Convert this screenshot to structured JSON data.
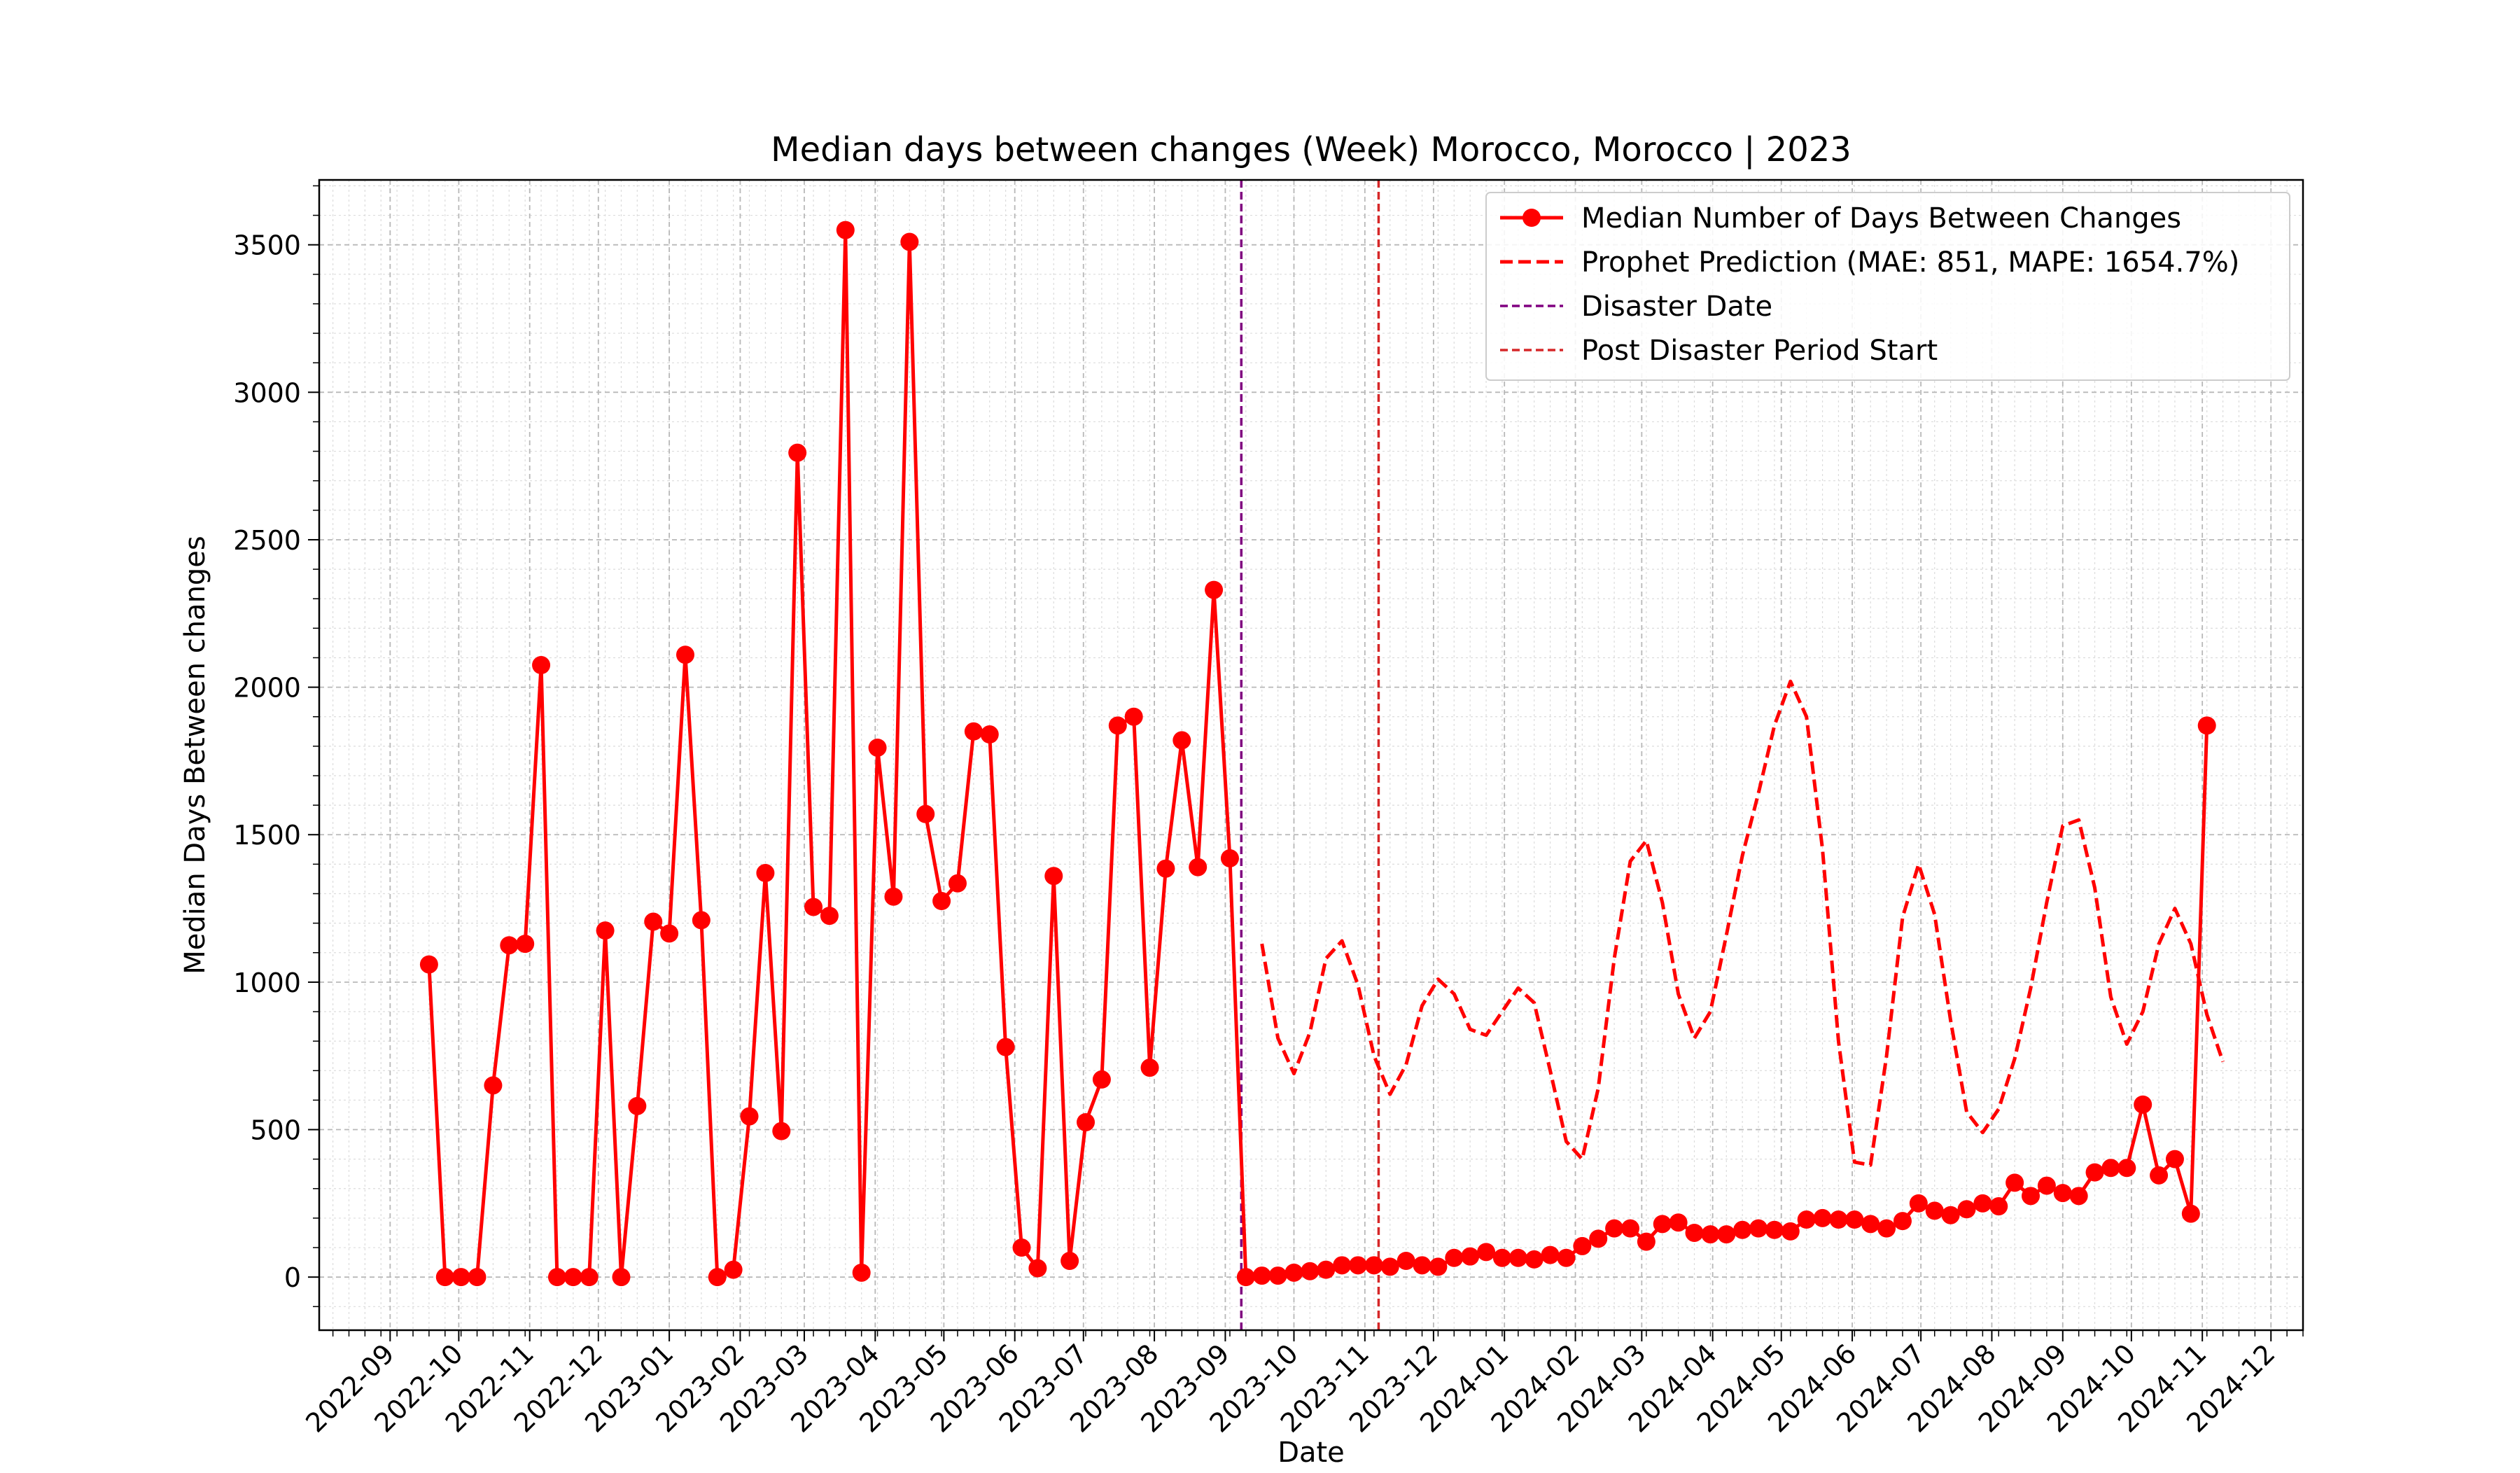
{
  "chart_data": {
    "type": "line",
    "title": "Median days between changes (Week) Morocco, Morocco | 2023",
    "xlabel": "Date",
    "ylabel": "Median Days Between changes",
    "x_axis_type": "date",
    "xlim": [
      "2022-08-01",
      "2024-12-15"
    ],
    "ylim": [
      -180,
      3720
    ],
    "x_ticks": [
      "2022-09",
      "2022-10",
      "2022-11",
      "2022-12",
      "2023-01",
      "2023-02",
      "2023-03",
      "2023-04",
      "2023-05",
      "2023-06",
      "2023-07",
      "2023-08",
      "2023-09",
      "2023-10",
      "2023-11",
      "2023-12",
      "2024-01",
      "2024-02",
      "2024-03",
      "2024-04",
      "2024-05",
      "2024-06",
      "2024-07",
      "2024-08",
      "2024-09",
      "2024-10",
      "2024-11",
      "2024-12"
    ],
    "y_ticks": [
      0,
      500,
      1000,
      1500,
      2000,
      2500,
      3000,
      3500
    ],
    "grid": true,
    "legend_position": "top-right",
    "series": [
      {
        "name": "Median Number of Days Between Changes",
        "color": "#ff0000",
        "style": "solid-with-markers",
        "points": [
          [
            "2022-09-18",
            1060
          ],
          [
            "2022-09-25",
            0
          ],
          [
            "2022-10-02",
            0
          ],
          [
            "2022-10-09",
            0
          ],
          [
            "2022-10-16",
            650
          ],
          [
            "2022-10-23",
            1125
          ],
          [
            "2022-10-30",
            1130
          ],
          [
            "2022-11-06",
            2075
          ],
          [
            "2022-11-13",
            0
          ],
          [
            "2022-11-20",
            0
          ],
          [
            "2022-11-27",
            0
          ],
          [
            "2022-12-04",
            1175
          ],
          [
            "2022-12-11",
            0
          ],
          [
            "2022-12-18",
            580
          ],
          [
            "2022-12-25",
            1205
          ],
          [
            "2023-01-01",
            1165
          ],
          [
            "2023-01-08",
            2110
          ],
          [
            "2023-01-15",
            1210
          ],
          [
            "2023-01-22",
            0
          ],
          [
            "2023-01-29",
            25
          ],
          [
            "2023-02-05",
            545
          ],
          [
            "2023-02-12",
            1370
          ],
          [
            "2023-02-19",
            495
          ],
          [
            "2023-02-26",
            2795
          ],
          [
            "2023-03-05",
            1255
          ],
          [
            "2023-03-12",
            1225
          ],
          [
            "2023-03-19",
            3550
          ],
          [
            "2023-03-26",
            15
          ],
          [
            "2023-04-02",
            1795
          ],
          [
            "2023-04-09",
            1290
          ],
          [
            "2023-04-16",
            3510
          ],
          [
            "2023-04-23",
            1570
          ],
          [
            "2023-04-30",
            1275
          ],
          [
            "2023-05-07",
            1335
          ],
          [
            "2023-05-14",
            1850
          ],
          [
            "2023-05-21",
            1840
          ],
          [
            "2023-05-28",
            780
          ],
          [
            "2023-06-04",
            100
          ],
          [
            "2023-06-11",
            30
          ],
          [
            "2023-06-18",
            1360
          ],
          [
            "2023-06-25",
            55
          ],
          [
            "2023-07-02",
            525
          ],
          [
            "2023-07-09",
            670
          ],
          [
            "2023-07-16",
            1870
          ],
          [
            "2023-07-23",
            1900
          ],
          [
            "2023-07-30",
            710
          ],
          [
            "2023-08-06",
            1385
          ],
          [
            "2023-08-13",
            1820
          ],
          [
            "2023-08-20",
            1390
          ],
          [
            "2023-08-27",
            2330
          ],
          [
            "2023-09-03",
            1420
          ],
          [
            "2023-09-10",
            0
          ],
          [
            "2023-09-17",
            5
          ],
          [
            "2023-09-24",
            5
          ],
          [
            "2023-10-01",
            15
          ],
          [
            "2023-10-08",
            20
          ],
          [
            "2023-10-15",
            25
          ],
          [
            "2023-10-22",
            40
          ],
          [
            "2023-10-29",
            40
          ],
          [
            "2023-11-05",
            40
          ],
          [
            "2023-11-12",
            35
          ],
          [
            "2023-11-19",
            55
          ],
          [
            "2023-11-26",
            40
          ],
          [
            "2023-12-03",
            35
          ],
          [
            "2023-12-10",
            65
          ],
          [
            "2023-12-17",
            70
          ],
          [
            "2023-12-24",
            85
          ],
          [
            "2023-12-31",
            65
          ],
          [
            "2024-01-07",
            65
          ],
          [
            "2024-01-14",
            60
          ],
          [
            "2024-01-21",
            75
          ],
          [
            "2024-01-28",
            65
          ],
          [
            "2024-02-04",
            105
          ],
          [
            "2024-02-11",
            130
          ],
          [
            "2024-02-18",
            165
          ],
          [
            "2024-02-25",
            165
          ],
          [
            "2024-03-03",
            120
          ],
          [
            "2024-03-10",
            180
          ],
          [
            "2024-03-17",
            185
          ],
          [
            "2024-03-24",
            150
          ],
          [
            "2024-03-31",
            145
          ],
          [
            "2024-04-07",
            145
          ],
          [
            "2024-04-14",
            160
          ],
          [
            "2024-04-21",
            165
          ],
          [
            "2024-04-28",
            160
          ],
          [
            "2024-05-05",
            155
          ],
          [
            "2024-05-12",
            195
          ],
          [
            "2024-05-19",
            200
          ],
          [
            "2024-05-26",
            195
          ],
          [
            "2024-06-02",
            195
          ],
          [
            "2024-06-09",
            180
          ],
          [
            "2024-06-16",
            165
          ],
          [
            "2024-06-23",
            190
          ],
          [
            "2024-06-30",
            250
          ],
          [
            "2024-07-07",
            225
          ],
          [
            "2024-07-14",
            210
          ],
          [
            "2024-07-21",
            230
          ],
          [
            "2024-07-28",
            250
          ],
          [
            "2024-08-04",
            240
          ],
          [
            "2024-08-11",
            320
          ],
          [
            "2024-08-18",
            275
          ],
          [
            "2024-08-25",
            310
          ],
          [
            "2024-09-01",
            285
          ],
          [
            "2024-09-08",
            275
          ],
          [
            "2024-09-15",
            355
          ],
          [
            "2024-09-22",
            370
          ],
          [
            "2024-09-29",
            370
          ],
          [
            "2024-10-06",
            585
          ],
          [
            "2024-10-13",
            345
          ],
          [
            "2024-10-20",
            400
          ],
          [
            "2024-10-27",
            215
          ],
          [
            "2024-11-03",
            1870
          ]
        ]
      },
      {
        "name": "Prophet Prediction (MAE: 851, MAPE: 1654.7%)",
        "color": "#ff0000",
        "style": "dashed",
        "points": [
          [
            "2023-09-17",
            1130
          ],
          [
            "2023-09-24",
            810
          ],
          [
            "2023-10-01",
            690
          ],
          [
            "2023-10-08",
            830
          ],
          [
            "2023-10-15",
            1080
          ],
          [
            "2023-10-22",
            1140
          ],
          [
            "2023-10-29",
            990
          ],
          [
            "2023-11-05",
            750
          ],
          [
            "2023-11-12",
            620
          ],
          [
            "2023-11-19",
            720
          ],
          [
            "2023-11-26",
            920
          ],
          [
            "2023-12-03",
            1010
          ],
          [
            "2023-12-10",
            960
          ],
          [
            "2023-12-17",
            840
          ],
          [
            "2023-12-24",
            820
          ],
          [
            "2023-12-31",
            900
          ],
          [
            "2024-01-07",
            980
          ],
          [
            "2024-01-14",
            930
          ],
          [
            "2024-01-21",
            700
          ],
          [
            "2024-01-28",
            460
          ],
          [
            "2024-02-04",
            400
          ],
          [
            "2024-02-11",
            640
          ],
          [
            "2024-02-18",
            1080
          ],
          [
            "2024-02-25",
            1410
          ],
          [
            "2024-03-03",
            1480
          ],
          [
            "2024-03-10",
            1270
          ],
          [
            "2024-03-17",
            960
          ],
          [
            "2024-03-24",
            810
          ],
          [
            "2024-03-31",
            900
          ],
          [
            "2024-04-07",
            1160
          ],
          [
            "2024-04-14",
            1430
          ],
          [
            "2024-04-21",
            1640
          ],
          [
            "2024-04-28",
            1870
          ],
          [
            "2024-05-05",
            2020
          ],
          [
            "2024-05-12",
            1900
          ],
          [
            "2024-05-19",
            1450
          ],
          [
            "2024-05-26",
            800
          ],
          [
            "2024-06-02",
            390
          ],
          [
            "2024-06-09",
            380
          ],
          [
            "2024-06-16",
            750
          ],
          [
            "2024-06-23",
            1220
          ],
          [
            "2024-06-30",
            1400
          ],
          [
            "2024-07-07",
            1230
          ],
          [
            "2024-07-14",
            870
          ],
          [
            "2024-07-21",
            560
          ],
          [
            "2024-07-28",
            490
          ],
          [
            "2024-08-04",
            570
          ],
          [
            "2024-08-11",
            740
          ],
          [
            "2024-08-18",
            980
          ],
          [
            "2024-08-25",
            1270
          ],
          [
            "2024-09-01",
            1530
          ],
          [
            "2024-09-08",
            1550
          ],
          [
            "2024-09-15",
            1320
          ],
          [
            "2024-09-22",
            950
          ],
          [
            "2024-09-29",
            790
          ],
          [
            "2024-10-06",
            900
          ],
          [
            "2024-10-13",
            1130
          ],
          [
            "2024-10-20",
            1250
          ],
          [
            "2024-10-27",
            1130
          ],
          [
            "2024-11-03",
            890
          ],
          [
            "2024-11-10",
            730
          ]
        ]
      },
      {
        "name": "Disaster Date",
        "color": "#800080",
        "style": "vertical-dashed",
        "x": "2023-09-08"
      },
      {
        "name": "Post Disaster Period Start",
        "color": "#d62728",
        "style": "vertical-dashed",
        "x": "2023-11-07"
      }
    ]
  }
}
